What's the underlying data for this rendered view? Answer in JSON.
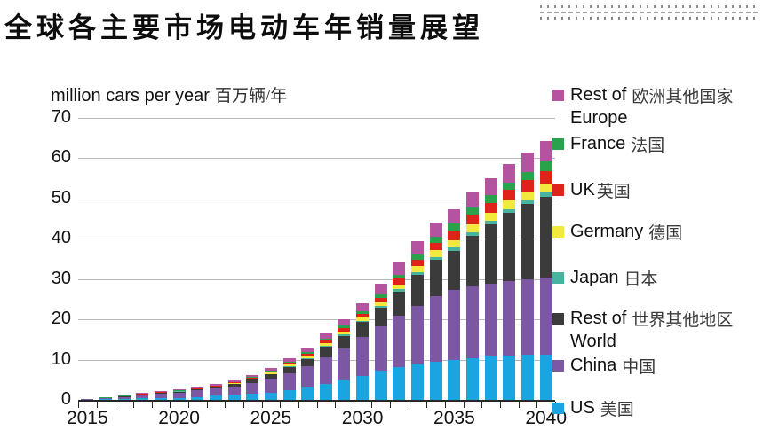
{
  "title": "全球各主要市场电动车年销量展望",
  "axis_unit": {
    "en": "million cars per year",
    "zh": "百万辆/年"
  },
  "legend": {
    "items": [
      {
        "en1": "Rest of",
        "en2": "Europe",
        "zh": "欧洲其他国家",
        "color": "#b4539f"
      },
      {
        "en1": "France",
        "en2": "",
        "zh": "法国",
        "color": "#2aa24c"
      },
      {
        "en1": "UK",
        "en2": "",
        "zh": "英国",
        "color": "#e0231a"
      },
      {
        "en1": "Germany",
        "en2": "",
        "zh": "德国",
        "color": "#f2e83e"
      },
      {
        "en1": "Japan",
        "en2": "",
        "zh": "日本",
        "color": "#48b39e"
      },
      {
        "en1": "Rest of",
        "en2": "World",
        "zh": "世界其他地区",
        "color": "#3b3b3b"
      },
      {
        "en1": "China",
        "en2": "",
        "zh": "中国",
        "color": "#7b57a4"
      },
      {
        "en1": "US",
        "en2": "",
        "zh": "美国",
        "color": "#1ba5e0"
      }
    ]
  },
  "chart_data": {
    "type": "bar",
    "stacked": true,
    "title": "全球各主要市场电动车年销量展望",
    "ylabel": "million cars per year 百万辆/年",
    "xlabel": "",
    "ylim": [
      0,
      70
    ],
    "ytick_step": 10,
    "grid": "horizontal",
    "legend_position": "right",
    "categories": [
      2015,
      2016,
      2017,
      2018,
      2019,
      2020,
      2021,
      2022,
      2023,
      2024,
      2025,
      2026,
      2027,
      2028,
      2029,
      2030,
      2031,
      2032,
      2033,
      2034,
      2035,
      2036,
      2037,
      2038,
      2039,
      2040
    ],
    "xtick_labels": [
      "2015",
      "2020",
      "2025",
      "2030",
      "2035",
      "2040"
    ],
    "series": [
      {
        "name": "US",
        "name_zh": "美国",
        "color": "#1ba5e0",
        "values": [
          0.1,
          0.15,
          0.2,
          0.35,
          0.45,
          0.55,
          0.75,
          1.0,
          1.3,
          1.6,
          1.8,
          2.4,
          3.1,
          4.0,
          4.8,
          6.0,
          7.2,
          8.1,
          8.8,
          9.5,
          10.0,
          10.4,
          10.7,
          11.0,
          11.2,
          11.3
        ]
      },
      {
        "name": "China",
        "name_zh": "中国",
        "color": "#7b57a4",
        "values": [
          0.15,
          0.3,
          0.55,
          0.85,
          1.1,
          1.3,
          1.6,
          1.9,
          2.1,
          2.5,
          3.4,
          4.3,
          5.2,
          6.6,
          7.9,
          9.6,
          11.0,
          12.8,
          14.6,
          16.2,
          17.4,
          17.8,
          18.1,
          18.4,
          18.7,
          19.0
        ]
      },
      {
        "name": "Rest of World",
        "name_zh": "世界其他地区",
        "color": "#3b3b3b",
        "values": [
          0.02,
          0.05,
          0.1,
          0.1,
          0.15,
          0.2,
          0.2,
          0.3,
          0.5,
          0.9,
          1.1,
          1.5,
          1.9,
          2.6,
          3.2,
          3.7,
          4.6,
          6.0,
          7.6,
          9.0,
          9.6,
          12.5,
          14.7,
          17.0,
          18.7,
          20.2
        ]
      },
      {
        "name": "Japan",
        "name_zh": "日本",
        "color": "#48b39e",
        "values": [
          0.01,
          0.01,
          0.03,
          0.03,
          0.04,
          0.06,
          0.06,
          0.07,
          0.09,
          0.11,
          0.16,
          0.2,
          0.25,
          0.33,
          0.4,
          0.4,
          0.5,
          0.6,
          0.7,
          0.85,
          0.9,
          0.92,
          0.95,
          0.97,
          1.0,
          1.0
        ]
      },
      {
        "name": "Germany",
        "name_zh": "德国",
        "color": "#f2e83e",
        "values": [
          0.01,
          0.02,
          0.04,
          0.05,
          0.07,
          0.09,
          0.09,
          0.12,
          0.15,
          0.19,
          0.27,
          0.35,
          0.45,
          0.58,
          0.72,
          0.8,
          1.0,
          1.2,
          1.45,
          1.6,
          1.8,
          1.9,
          2.0,
          2.1,
          2.2,
          2.3
        ]
      },
      {
        "name": "UK",
        "name_zh": "英国",
        "color": "#e0231a",
        "values": [
          0.01,
          0.02,
          0.05,
          0.06,
          0.08,
          0.1,
          0.11,
          0.13,
          0.17,
          0.21,
          0.3,
          0.4,
          0.5,
          0.65,
          0.8,
          0.9,
          1.1,
          1.35,
          1.6,
          1.85,
          2.3,
          2.4,
          2.5,
          2.6,
          2.7,
          2.9
        ]
      },
      {
        "name": "France",
        "name_zh": "法国",
        "color": "#2aa24c",
        "values": [
          0.0,
          0.02,
          0.04,
          0.05,
          0.06,
          0.08,
          0.08,
          0.1,
          0.14,
          0.17,
          0.24,
          0.32,
          0.4,
          0.52,
          0.64,
          0.7,
          0.9,
          1.05,
          1.25,
          1.4,
          1.7,
          1.75,
          1.8,
          1.9,
          2.0,
          2.5
        ]
      },
      {
        "name": "Rest of Europe",
        "name_zh": "欧洲其他国家",
        "color": "#b4539f",
        "values": [
          0.01,
          0.04,
          0.09,
          0.11,
          0.15,
          0.22,
          0.21,
          0.28,
          0.35,
          0.42,
          0.63,
          0.83,
          1.05,
          1.32,
          1.64,
          1.9,
          2.5,
          3.1,
          3.4,
          3.6,
          3.7,
          4.0,
          4.3,
          4.6,
          4.9,
          5.0
        ]
      }
    ]
  }
}
